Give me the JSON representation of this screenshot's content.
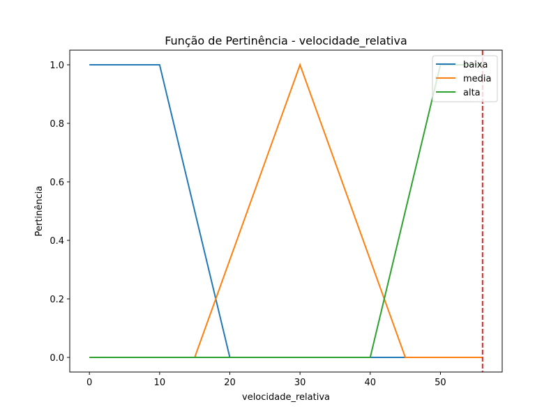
{
  "chart_data": {
    "type": "line",
    "title": "Função de Pertinência - velocidade_relativa",
    "xlabel": "velocidade_relativa",
    "ylabel": "Pertinência",
    "xlim": [
      -2.8,
      58.8
    ],
    "ylim": [
      -0.05,
      1.05
    ],
    "x_ticks": [
      0,
      10,
      20,
      30,
      40,
      50
    ],
    "y_ticks": [
      0.0,
      0.2,
      0.4,
      0.6,
      0.8,
      1.0
    ],
    "x_tick_labels": [
      "0",
      "10",
      "20",
      "30",
      "40",
      "50"
    ],
    "y_tick_labels": [
      "0.0",
      "0.2",
      "0.4",
      "0.6",
      "0.8",
      "1.0"
    ],
    "grid": false,
    "legend_position": "top-right",
    "series": [
      {
        "name": "baixa",
        "color": "#1f77b4",
        "points": [
          [
            0,
            1
          ],
          [
            10,
            1
          ],
          [
            20,
            0
          ],
          [
            56,
            0
          ]
        ]
      },
      {
        "name": "media",
        "color": "#ff7f0e",
        "points": [
          [
            0,
            0
          ],
          [
            15,
            0
          ],
          [
            30,
            1
          ],
          [
            45,
            0
          ],
          [
            56,
            0
          ]
        ]
      },
      {
        "name": "alta",
        "color": "#2ca02c",
        "points": [
          [
            0,
            0
          ],
          [
            40,
            0
          ],
          [
            50,
            1
          ],
          [
            56,
            1
          ]
        ]
      }
    ],
    "vline": {
      "x": 56,
      "color": "#d62728",
      "style": "dashed"
    }
  }
}
